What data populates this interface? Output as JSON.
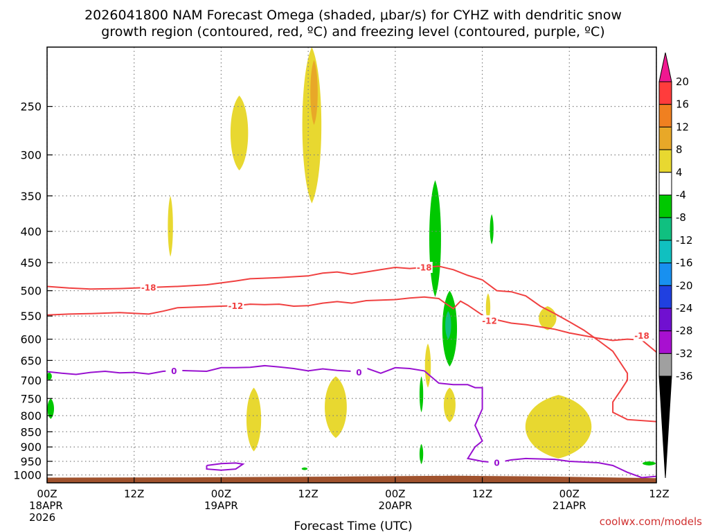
{
  "chart_data": {
    "type": "time-height contour",
    "title_line1": "2026041800 NAM Forecast Omega (shaded, μbar/s) for CYHZ with dendritic snow",
    "title_line2": "growth region (contoured, red, ºC) and freezing level (contoured, purple, ºC)",
    "xlabel": "Forecast Time (UTC)",
    "credit": "coolwx.com/models",
    "x_ticks": [
      {
        "hour": 0,
        "line1": "00Z",
        "line2": "18APR",
        "line3": "2026"
      },
      {
        "hour": 12,
        "line1": "12Z",
        "line2": "",
        "line3": ""
      },
      {
        "hour": 24,
        "line1": "00Z",
        "line2": "19APR",
        "line3": ""
      },
      {
        "hour": 36,
        "line1": "12Z",
        "line2": "",
        "line3": ""
      },
      {
        "hour": 48,
        "line1": "00Z",
        "line2": "20APR",
        "line3": ""
      },
      {
        "hour": 60,
        "line1": "12Z",
        "line2": "",
        "line3": ""
      },
      {
        "hour": 72,
        "line1": "00Z",
        "line2": "21APR",
        "line3": ""
      },
      {
        "hour": 84,
        "line1": "12Z",
        "line2": "",
        "line3": ""
      }
    ],
    "y_ticks": [
      "250",
      "300",
      "350",
      "400",
      "450",
      "500",
      "550",
      "600",
      "650",
      "700",
      "750",
      "800",
      "850",
      "900",
      "950",
      "1000"
    ],
    "xlim": [
      0,
      84
    ],
    "ylim_hpa": [
      1030,
      200
    ],
    "y_scale": "log",
    "colorbar": {
      "labels": [
        "20",
        "16",
        "12",
        "8",
        "4",
        "-4",
        "-8",
        "-12",
        "-16",
        "-20",
        "-24",
        "-28",
        "-32",
        "-36"
      ],
      "colors": [
        "#ff3c3c",
        "#f08020",
        "#e8a828",
        "#e8d830",
        "#ffffff",
        "#00c800",
        "#10c080",
        "#10c0c0",
        "#1890f0",
        "#2040e0",
        "#7010d0",
        "#a810d0",
        "#a0a0a0"
      ],
      "top_arrow": "#f01890",
      "bottom_arrow": "#000000"
    },
    "contours": [
      {
        "name": "-18",
        "color": "#f04040",
        "label": "-18",
        "points": [
          [
            0,
            492
          ],
          [
            3,
            495
          ],
          [
            6,
            497
          ],
          [
            10,
            496
          ],
          [
            14,
            494
          ],
          [
            18,
            492
          ],
          [
            22,
            489
          ],
          [
            26,
            482
          ],
          [
            28,
            478
          ],
          [
            32,
            476
          ],
          [
            36,
            473
          ],
          [
            38,
            468
          ],
          [
            40,
            466
          ],
          [
            42,
            470
          ],
          [
            44,
            466
          ],
          [
            46,
            462
          ],
          [
            48,
            458
          ],
          [
            50,
            460
          ],
          [
            52,
            458
          ],
          [
            54,
            456
          ],
          [
            56,
            462
          ],
          [
            58,
            472
          ],
          [
            60,
            480
          ],
          [
            62,
            500
          ],
          [
            64,
            502
          ],
          [
            66,
            510
          ],
          [
            68,
            530
          ],
          [
            70,
            545
          ],
          [
            72,
            562
          ],
          [
            74,
            580
          ],
          [
            76,
            603
          ],
          [
            78,
            628
          ],
          [
            80,
            682
          ],
          [
            80,
            700
          ],
          [
            79,
            730
          ],
          [
            78,
            760
          ],
          [
            78,
            790
          ],
          [
            80,
            812
          ],
          [
            84,
            818
          ]
        ]
      },
      {
        "name": "-12",
        "color": "#f04040",
        "label": "-12",
        "points": [
          [
            0,
            548
          ],
          [
            3,
            546
          ],
          [
            6,
            545
          ],
          [
            10,
            543
          ],
          [
            14,
            546
          ],
          [
            16,
            540
          ],
          [
            18,
            533
          ],
          [
            22,
            531
          ],
          [
            26,
            529
          ],
          [
            28,
            526
          ],
          [
            30,
            527
          ],
          [
            32,
            526
          ],
          [
            34,
            530
          ],
          [
            36,
            529
          ],
          [
            38,
            524
          ],
          [
            40,
            521
          ],
          [
            42,
            524
          ],
          [
            44,
            519
          ],
          [
            46,
            518
          ],
          [
            48,
            517
          ],
          [
            50,
            514
          ],
          [
            52,
            512
          ],
          [
            54,
            515
          ],
          [
            55,
            525
          ],
          [
            56,
            535
          ],
          [
            57,
            520
          ],
          [
            58,
            528
          ],
          [
            60,
            548
          ],
          [
            61,
            560
          ],
          [
            62,
            558
          ],
          [
            64,
            565
          ],
          [
            66,
            568
          ],
          [
            68,
            573
          ],
          [
            70,
            578
          ],
          [
            72,
            586
          ],
          [
            74,
            592
          ],
          [
            76,
            598
          ],
          [
            78,
            603
          ],
          [
            80,
            600
          ],
          [
            82,
            602
          ],
          [
            84,
            630
          ]
        ]
      },
      {
        "name": "0",
        "color": "#9810d0",
        "label": "0",
        "points": [
          [
            0,
            678
          ],
          [
            2,
            682
          ],
          [
            4,
            685
          ],
          [
            6,
            680
          ],
          [
            8,
            677
          ],
          [
            10,
            681
          ],
          [
            12,
            680
          ],
          [
            14,
            684
          ],
          [
            16,
            677
          ],
          [
            18,
            675
          ],
          [
            20,
            676
          ],
          [
            22,
            677
          ],
          [
            24,
            668
          ],
          [
            26,
            668
          ],
          [
            28,
            667
          ],
          [
            30,
            663
          ],
          [
            32,
            666
          ],
          [
            34,
            670
          ],
          [
            36,
            676
          ],
          [
            38,
            671
          ],
          [
            40,
            675
          ],
          [
            42,
            677
          ],
          [
            44,
            669
          ],
          [
            46,
            682
          ],
          [
            48,
            668
          ],
          [
            50,
            670
          ],
          [
            52,
            676
          ],
          [
            54,
            708
          ],
          [
            56,
            712
          ],
          [
            58,
            712
          ],
          [
            59,
            720
          ],
          [
            60,
            720
          ],
          [
            60,
            740
          ],
          [
            60,
            780
          ],
          [
            59,
            830
          ],
          [
            60,
            880
          ],
          [
            59,
            900
          ],
          [
            58,
            940
          ],
          [
            60,
            950
          ],
          [
            62,
            955
          ],
          [
            64,
            945
          ],
          [
            66,
            940
          ],
          [
            70,
            943
          ],
          [
            72,
            950
          ],
          [
            76,
            955
          ],
          [
            78,
            965
          ],
          [
            80,
            990
          ],
          [
            82,
            1010
          ],
          [
            84,
            1005
          ]
        ]
      },
      {
        "name": "0-loop",
        "color": "#9810d0",
        "label": "",
        "points": [
          [
            22,
            965
          ],
          [
            24,
            958
          ],
          [
            26,
            956
          ],
          [
            27,
            960
          ],
          [
            26,
            978
          ],
          [
            24,
            982
          ],
          [
            22,
            978
          ],
          [
            22,
            965
          ]
        ]
      }
    ],
    "shaded": [
      {
        "value": "4",
        "color": "#e8d830",
        "cx": 36.5,
        "top": 200,
        "bottom": 360,
        "halfw": 1.3
      },
      {
        "value": "4",
        "color": "#e8d830",
        "cx": 26.5,
        "top": 240,
        "bottom": 318,
        "halfw": 1.2
      },
      {
        "value": "4",
        "color": "#e8d830",
        "cx": 17.0,
        "top": 350,
        "bottom": 440,
        "halfw": 0.35
      },
      {
        "value": "8",
        "color": "#e8a828",
        "cx": 36.8,
        "top": 210,
        "bottom": 268,
        "halfw": 0.5
      },
      {
        "value": "4",
        "color": "#e8d830",
        "cx": 28.5,
        "top": 720,
        "bottom": 915,
        "halfw": 1.0
      },
      {
        "value": "4",
        "color": "#e8d830",
        "cx": 39.8,
        "top": 690,
        "bottom": 870,
        "halfw": 1.5
      },
      {
        "value": "4",
        "color": "#e8d830",
        "cx": 52.5,
        "top": 610,
        "bottom": 720,
        "halfw": 0.4
      },
      {
        "value": "4",
        "color": "#e8d830",
        "cx": 55.5,
        "top": 720,
        "bottom": 820,
        "halfw": 0.8
      },
      {
        "value": "4",
        "color": "#e8d830",
        "cx": 60.8,
        "top": 505,
        "bottom": 560,
        "halfw": 0.3
      },
      {
        "value": "4",
        "color": "#e8d830",
        "cx": 69.0,
        "top": 530,
        "bottom": 580,
        "halfw": 1.2
      },
      {
        "value": "4",
        "color": "#e8d830",
        "cx": 70.5,
        "top": 740,
        "bottom": 940,
        "halfw": 4.5
      },
      {
        "value": "-4",
        "color": "#00c800",
        "cx": 53.5,
        "top": 330,
        "bottom": 512,
        "halfw": 0.8
      },
      {
        "value": "-4",
        "color": "#00c800",
        "cx": 55.5,
        "top": 500,
        "bottom": 665,
        "halfw": 1.0
      },
      {
        "value": "-8",
        "color": "#10c080",
        "cx": 55.3,
        "top": 540,
        "bottom": 600,
        "halfw": 0.4
      },
      {
        "value": "-4",
        "color": "#00c800",
        "cx": 61.3,
        "top": 375,
        "bottom": 420,
        "halfw": 0.25
      },
      {
        "value": "-4",
        "color": "#00c800",
        "cx": 51.6,
        "top": 690,
        "bottom": 790,
        "halfw": 0.25
      },
      {
        "value": "-4",
        "color": "#00c800",
        "cx": 51.6,
        "top": 890,
        "bottom": 960,
        "halfw": 0.25
      },
      {
        "value": "-4",
        "color": "#00c800",
        "cx": 0.3,
        "top": 680,
        "bottom": 700,
        "halfw": 0.35
      },
      {
        "value": "-4",
        "color": "#00c800",
        "cx": 0.5,
        "top": 750,
        "bottom": 810,
        "halfw": 0.45
      },
      {
        "value": "-4",
        "color": "#00c800",
        "cx": 35.5,
        "top": 972,
        "bottom": 982,
        "halfw": 0.4
      },
      {
        "value": "-4",
        "color": "#00c800",
        "cx": 83.0,
        "top": 950,
        "bottom": 965,
        "halfw": 0.9
      }
    ],
    "terrain_color": "#a0522d"
  }
}
